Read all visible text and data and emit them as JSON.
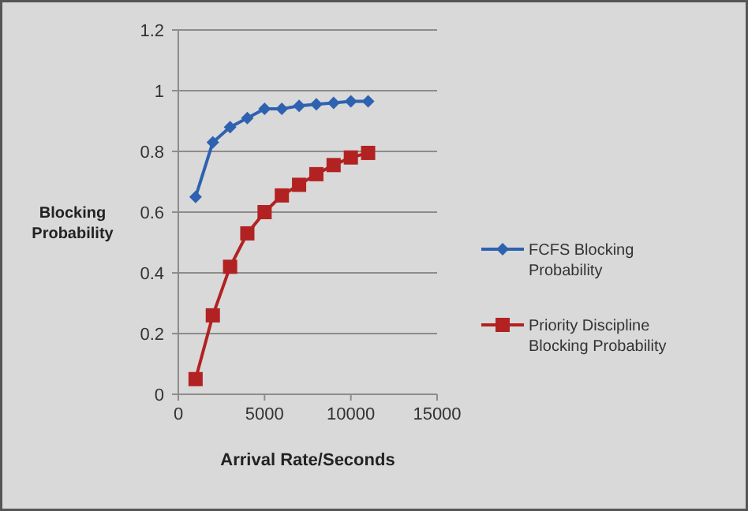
{
  "chart_data": {
    "type": "line",
    "xlabel": "Arrival Rate/Seconds",
    "ylabel": "Blocking Probability",
    "x": [
      1000,
      2000,
      3000,
      4000,
      5000,
      6000,
      7000,
      8000,
      9000,
      10000,
      11000
    ],
    "xlim": [
      0,
      15000
    ],
    "xticks": [
      0,
      5000,
      10000,
      15000
    ],
    "ylim": [
      0,
      1.2
    ],
    "yticks": [
      0,
      0.2,
      0.4,
      0.6,
      0.8,
      1,
      1.2
    ],
    "grid": "y",
    "legend": "right",
    "series": [
      {
        "name": "FCFS Blocking Probability",
        "color": "#2e62b0",
        "marker": "diamond",
        "values": [
          0.65,
          0.83,
          0.88,
          0.91,
          0.94,
          0.94,
          0.95,
          0.955,
          0.96,
          0.965,
          0.965
        ]
      },
      {
        "name": "Priority Discipline Blocking Probability",
        "color": "#b22222",
        "marker": "square",
        "values": [
          0.05,
          0.26,
          0.42,
          0.53,
          0.6,
          0.655,
          0.69,
          0.725,
          0.755,
          0.78,
          0.795
        ]
      }
    ]
  }
}
